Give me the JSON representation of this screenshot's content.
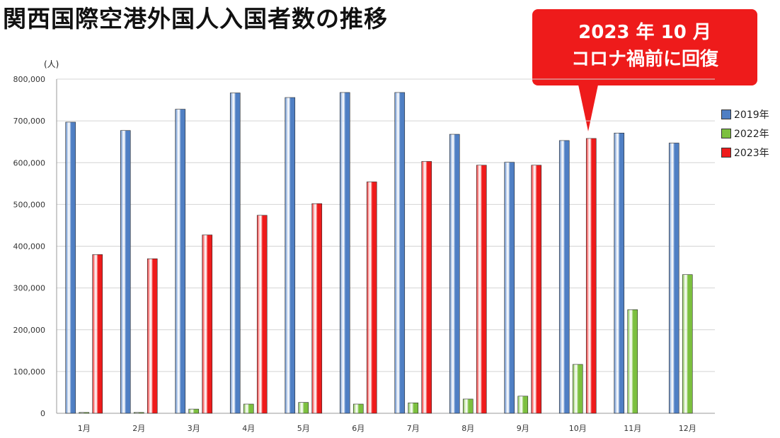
{
  "title": "関西国際空港外国人入国者数の推移",
  "callout": {
    "line1": "2023 年 10 月",
    "line2": "コロナ禍前に回復"
  },
  "chart_data": {
    "type": "bar",
    "title": "関西国際空港外国人入国者数の推移",
    "unit_label": "(人)",
    "categories": [
      "1月",
      "2月",
      "3月",
      "4月",
      "5月",
      "6月",
      "7月",
      "8月",
      "9月",
      "10月",
      "11月",
      "12月"
    ],
    "series": [
      {
        "name": "2019年",
        "color": "#4f7fc4",
        "values": [
          697000,
          677000,
          728000,
          767000,
          756000,
          768000,
          768000,
          668000,
          601000,
          653000,
          671000,
          647000
        ]
      },
      {
        "name": "2022年",
        "color": "#7cc03f",
        "values": [
          2000,
          2000,
          10000,
          22000,
          26000,
          22000,
          25000,
          34000,
          41000,
          117000,
          248000,
          332000
        ]
      },
      {
        "name": "2023年",
        "color": "#ee1b1b",
        "values": [
          380000,
          370000,
          427000,
          474000,
          502000,
          554000,
          603000,
          594000,
          594000,
          658000,
          null,
          null
        ]
      }
    ],
    "ylim": [
      0,
      800000
    ],
    "yticks": [
      "0",
      "100,000",
      "200,000",
      "300,000",
      "400,000",
      "500,000",
      "600,000",
      "700,000",
      "800,000"
    ],
    "grid": true,
    "legend_position": "right"
  }
}
